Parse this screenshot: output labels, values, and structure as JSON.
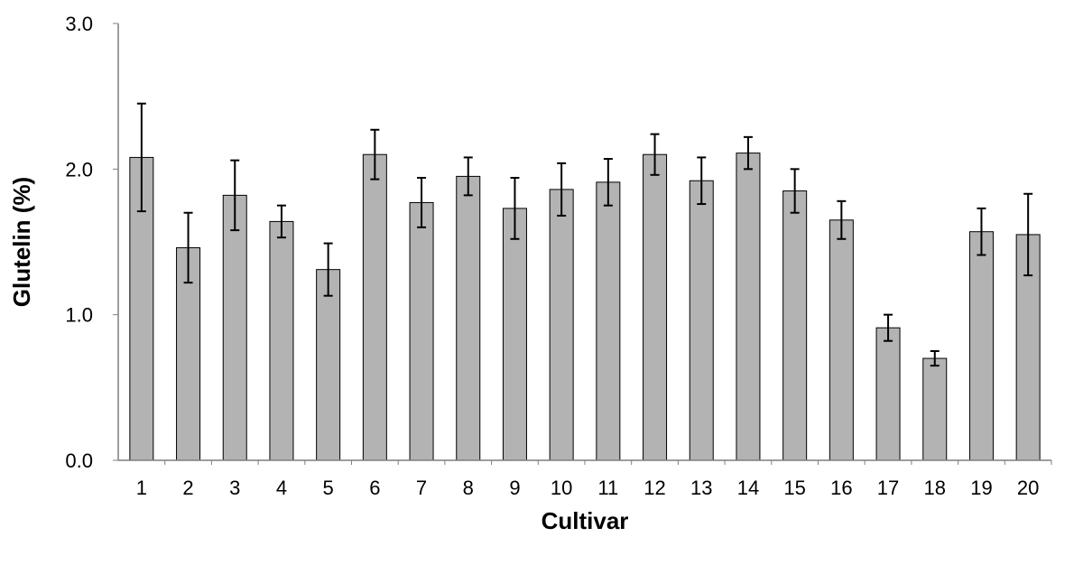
{
  "chart_data": {
    "type": "bar",
    "title": "",
    "xlabel": "Cultivar",
    "ylabel": "Glutelin (%)",
    "ylim": [
      0,
      3
    ],
    "yticks": [
      "0.0",
      "1.0",
      "2.0",
      "3.0"
    ],
    "categories": [
      "1",
      "2",
      "3",
      "4",
      "5",
      "6",
      "7",
      "8",
      "9",
      "10",
      "11",
      "12",
      "13",
      "14",
      "15",
      "16",
      "17",
      "18",
      "19",
      "20"
    ],
    "values": [
      2.08,
      1.46,
      1.82,
      1.64,
      1.31,
      2.1,
      1.77,
      1.95,
      1.73,
      1.86,
      1.91,
      2.1,
      1.92,
      2.11,
      1.85,
      1.65,
      0.91,
      0.7,
      1.57,
      1.55
    ],
    "errors": [
      0.37,
      0.24,
      0.24,
      0.11,
      0.18,
      0.17,
      0.17,
      0.13,
      0.21,
      0.18,
      0.16,
      0.14,
      0.16,
      0.11,
      0.15,
      0.13,
      0.09,
      0.05,
      0.16,
      0.28
    ],
    "grid": false,
    "legend": "none",
    "colors": {
      "bar_fill": "#b3b3b3",
      "bar_stroke": "#000000",
      "axis": "#7f7f7f",
      "error_bar": "#000000"
    }
  }
}
